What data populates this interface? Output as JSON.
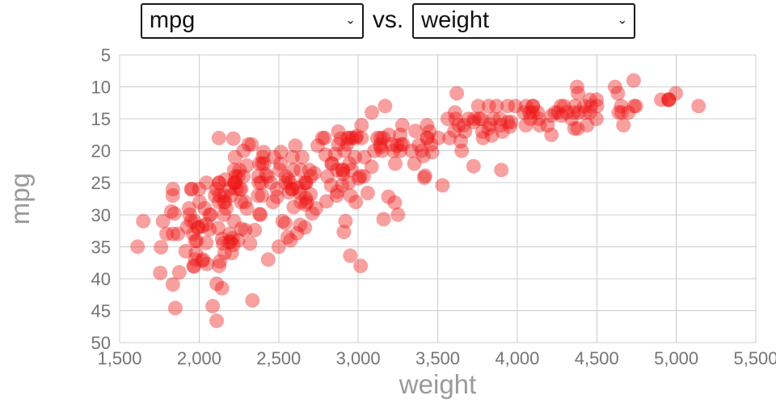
{
  "controls": {
    "y_select": {
      "selected": "mpg"
    },
    "vs_label": "vs.",
    "x_select": {
      "selected": "weight"
    }
  },
  "icons": {
    "select_caret": "⌄"
  },
  "chart_data": {
    "type": "scatter",
    "title": "",
    "xlabel": "weight",
    "ylabel": "mpg",
    "xlim": [
      1500,
      5500
    ],
    "y_top": 5,
    "y_bottom": 50,
    "y_axis_layout": "inverted: 5 at top, 50 at bottom",
    "x_ticks": [
      {
        "value": 1500,
        "label": "1,500"
      },
      {
        "value": 2000,
        "label": "2,000"
      },
      {
        "value": 2500,
        "label": "2,500"
      },
      {
        "value": 3000,
        "label": "3,000"
      },
      {
        "value": 3500,
        "label": "3,500"
      },
      {
        "value": 4000,
        "label": "4,000"
      },
      {
        "value": 4500,
        "label": "4,500"
      },
      {
        "value": 5000,
        "label": "5,000"
      },
      {
        "value": 5500,
        "label": "5,500"
      }
    ],
    "y_ticks": [
      5,
      10,
      15,
      20,
      25,
      30,
      35,
      40,
      45,
      50
    ],
    "grid": true,
    "legend": "none",
    "style": {
      "marker_color": "#ee1111",
      "marker_opacity": 0.4,
      "marker_radius": 9,
      "grid_color": "#cccccc",
      "tick_label_color": "#757575",
      "axis_title_color": "#9a9a9a"
    },
    "points_format": "[weight, mpg]",
    "points": [
      [
        3504,
        18
      ],
      [
        3693,
        15
      ],
      [
        3436,
        18
      ],
      [
        3433,
        16
      ],
      [
        3449,
        17
      ],
      [
        4341,
        15
      ],
      [
        4354,
        14
      ],
      [
        4312,
        14
      ],
      [
        4425,
        14
      ],
      [
        3850,
        15
      ],
      [
        3563,
        15
      ],
      [
        3609,
        14
      ],
      [
        3761,
        15
      ],
      [
        3086,
        14
      ],
      [
        2372,
        24
      ],
      [
        2833,
        22
      ],
      [
        2774,
        18
      ],
      [
        2587,
        21
      ],
      [
        2130,
        27
      ],
      [
        1835,
        26
      ],
      [
        2672,
        25
      ],
      [
        2430,
        24
      ],
      [
        2375,
        25
      ],
      [
        2234,
        26
      ],
      [
        2648,
        21
      ],
      [
        4615,
        10
      ],
      [
        4376,
        10
      ],
      [
        4382,
        11
      ],
      [
        4732,
        9
      ],
      [
        2264,
        28
      ],
      [
        2228,
        25
      ],
      [
        2046,
        25
      ],
      [
        2875,
        19
      ],
      [
        3021,
        16
      ],
      [
        2875,
        17
      ],
      [
        3139,
        19
      ],
      [
        3140,
        18
      ],
      [
        4096,
        14
      ],
      [
        4955,
        12
      ],
      [
        4746,
        13
      ],
      [
        5140,
        13
      ],
      [
        2962,
        18
      ],
      [
        2408,
        22
      ],
      [
        3282,
        19
      ],
      [
        2220,
        23
      ],
      [
        2123,
        28
      ],
      [
        2074,
        30
      ],
      [
        2065,
        30
      ],
      [
        1773,
        31
      ],
      [
        1613,
        35
      ],
      [
        1834,
        27
      ],
      [
        1955,
        26
      ],
      [
        2278,
        24
      ],
      [
        2126,
        25
      ],
      [
        2254,
        23
      ],
      [
        2226,
        21
      ],
      [
        4274,
        13
      ],
      [
        4385,
        14
      ],
      [
        4135,
        15
      ],
      [
        4129,
        14
      ],
      [
        3672,
        17
      ],
      [
        4633,
        11
      ],
      [
        4502,
        13
      ],
      [
        4456,
        12
      ],
      [
        4422,
        13
      ],
      [
        2330,
        19
      ],
      [
        3892,
        15
      ],
      [
        4098,
        13
      ],
      [
        4294,
        13
      ],
      [
        4077,
        14
      ],
      [
        2933,
        18
      ],
      [
        2511,
        22
      ],
      [
        2979,
        21
      ],
      [
        2189,
        26
      ],
      [
        2395,
        22
      ],
      [
        2288,
        28
      ],
      [
        2506,
        23
      ],
      [
        2164,
        28
      ],
      [
        2100,
        27
      ],
      [
        4100,
        13
      ],
      [
        3988,
        13
      ],
      [
        4042,
        14
      ],
      [
        3777,
        15
      ],
      [
        4952,
        12
      ],
      [
        4464,
        13
      ],
      [
        4363,
        13
      ],
      [
        4237,
        14
      ],
      [
        4735,
        13
      ],
      [
        4951,
        12
      ],
      [
        3821,
        13
      ],
      [
        3121,
        18
      ],
      [
        3278,
        16
      ],
      [
        2945,
        18
      ],
      [
        3021,
        18
      ],
      [
        2904,
        23
      ],
      [
        1950,
        26
      ],
      [
        4997,
        11
      ],
      [
        4906,
        12
      ],
      [
        4654,
        13
      ],
      [
        4499,
        12
      ],
      [
        2789,
        18
      ],
      [
        2279,
        20
      ],
      [
        2401,
        21
      ],
      [
        2379,
        22
      ],
      [
        2124,
        18
      ],
      [
        2310,
        19
      ],
      [
        2472,
        21
      ],
      [
        2265,
        26
      ],
      [
        4082,
        15
      ],
      [
        4278,
        14.5
      ],
      [
        1867,
        33
      ],
      [
        2158,
        27
      ],
      [
        2582,
        26
      ],
      [
        2868,
        23
      ],
      [
        3399,
        20
      ],
      [
        2660,
        25
      ],
      [
        2807,
        24
      ],
      [
        3664,
        16
      ],
      [
        3102,
        20
      ],
      [
        2901,
        23
      ],
      [
        3336,
        20
      ],
      [
        1950,
        31
      ],
      [
        2451,
        25
      ],
      [
        1836,
        33
      ],
      [
        2542,
        25
      ],
      [
        3781,
        17
      ],
      [
        3632,
        16
      ],
      [
        3613,
        15
      ],
      [
        4141,
        16
      ],
      [
        4699,
        14
      ],
      [
        4457,
        14
      ],
      [
        4638,
        14
      ],
      [
        4257,
        14
      ],
      [
        2219,
        31
      ],
      [
        1963,
        33
      ],
      [
        2300,
        29
      ],
      [
        1649,
        31
      ],
      [
        2003,
        28
      ],
      [
        2125,
        25
      ],
      [
        2108,
        26
      ],
      [
        2246,
        24
      ],
      [
        2489,
        26
      ],
      [
        2391,
        25
      ],
      [
        2000,
        26
      ],
      [
        3264,
        20
      ],
      [
        3459,
        19
      ],
      [
        3432,
        18
      ],
      [
        3158,
        18
      ],
      [
        4668,
        16
      ],
      [
        4440,
        16
      ],
      [
        4498,
        15
      ],
      [
        4657,
        14
      ],
      [
        3907,
        17
      ],
      [
        3897,
        16
      ],
      [
        3730,
        15
      ],
      [
        3785,
        18
      ],
      [
        3039,
        21
      ],
      [
        3221,
        20
      ],
      [
        3169,
        13
      ],
      [
        2171,
        29
      ],
      [
        2639,
        23
      ],
      [
        2914,
        20
      ],
      [
        2592,
        23
      ],
      [
        2702,
        24
      ],
      [
        2223,
        25
      ],
      [
        2545,
        24
      ],
      [
        2984,
        18
      ],
      [
        1937,
        29
      ],
      [
        3211,
        19
      ],
      [
        2694,
        23
      ],
      [
        2957,
        23
      ],
      [
        2945,
        22
      ],
      [
        2671,
        25
      ],
      [
        1795,
        33
      ],
      [
        2464,
        28
      ],
      [
        2220,
        25
      ],
      [
        2572,
        25
      ],
      [
        2255,
        26
      ],
      [
        2202,
        27
      ],
      [
        4215,
        17.5
      ],
      [
        4190,
        16
      ],
      [
        3962,
        15.5
      ],
      [
        4215,
        14.5
      ],
      [
        3233,
        22
      ],
      [
        3353,
        22
      ],
      [
        3012,
        24
      ],
      [
        3085,
        22.5
      ],
      [
        2035,
        29
      ],
      [
        2164,
        24.5
      ],
      [
        1940,
        30
      ],
      [
        3651,
        20
      ],
      [
        3574,
        18
      ],
      [
        3645,
        18.5
      ],
      [
        3193,
        17.5
      ],
      [
        1825,
        29.5
      ],
      [
        1990,
        32
      ],
      [
        2155,
        28
      ],
      [
        2565,
        26.5
      ],
      [
        3150,
        20
      ],
      [
        3940,
        13
      ],
      [
        3270,
        19
      ],
      [
        2930,
        19
      ],
      [
        3820,
        16.5
      ],
      [
        4380,
        16.5
      ],
      [
        4055,
        13
      ],
      [
        3870,
        13
      ],
      [
        3755,
        13
      ],
      [
        2045,
        31.5
      ],
      [
        2155,
        30
      ],
      [
        2560,
        24.5
      ],
      [
        2300,
        22.3
      ],
      [
        2230,
        24
      ],
      [
        2515,
        20.2
      ],
      [
        2745,
        19.2
      ],
      [
        2855,
        20.5
      ],
      [
        2405,
        20.2
      ],
      [
        2830,
        25.4
      ],
      [
        3140,
        19.4
      ],
      [
        2795,
        20.6
      ],
      [
        3410,
        20.8
      ],
      [
        2215,
        18.1
      ],
      [
        3245,
        19.2
      ],
      [
        2990,
        17.7
      ],
      [
        2890,
        18.1
      ],
      [
        3265,
        17.5
      ],
      [
        3360,
        16.9
      ],
      [
        3840,
        17.6
      ],
      [
        3725,
        15.5
      ],
      [
        3955,
        16.2
      ],
      [
        3830,
        15.9
      ],
      [
        4360,
        16.5
      ],
      [
        4054,
        16
      ],
      [
        3605,
        16.9
      ],
      [
        3940,
        15.5
      ],
      [
        1925,
        31.9
      ],
      [
        1975,
        34.1
      ],
      [
        1915,
        35.7
      ],
      [
        2670,
        27.4
      ],
      [
        3530,
        25.4
      ],
      [
        3900,
        23
      ],
      [
        3190,
        27.2
      ],
      [
        3420,
        23.9
      ],
      [
        2200,
        34.2
      ],
      [
        2150,
        34.5
      ],
      [
        2020,
        31.8
      ],
      [
        2130,
        37.3
      ],
      [
        2670,
        28.4
      ],
      [
        2595,
        28.8
      ],
      [
        2700,
        26.8
      ],
      [
        2556,
        33.5
      ],
      [
        2144,
        41.5
      ],
      [
        1968,
        38.1
      ],
      [
        2120,
        32.1
      ],
      [
        2019,
        37.2
      ],
      [
        2678,
        28
      ],
      [
        2870,
        26.4
      ],
      [
        3003,
        24.3
      ],
      [
        3381,
        19.1
      ],
      [
        2188,
        34.3
      ],
      [
        2711,
        29.8
      ],
      [
        2542,
        31.3
      ],
      [
        2434,
        37
      ],
      [
        2265,
        32.2
      ],
      [
        2110,
        46.6
      ],
      [
        2800,
        27.9
      ],
      [
        2110,
        40.8
      ],
      [
        2085,
        44.3
      ],
      [
        2335,
        43.4
      ],
      [
        2950,
        36.4
      ],
      [
        3250,
        30
      ],
      [
        1850,
        44.6
      ],
      [
        1835,
        40.9
      ],
      [
        2145,
        33.8
      ],
      [
        1845,
        29.8
      ],
      [
        2910,
        32.7
      ],
      [
        2420,
        23.7
      ],
      [
        2500,
        35
      ],
      [
        2905,
        23.6
      ],
      [
        2290,
        32.4
      ],
      [
        2490,
        27.2
      ],
      [
        2635,
        26.6
      ],
      [
        2620,
        25.8
      ],
      [
        2725,
        23.5
      ],
      [
        2385,
        30
      ],
      [
        1755,
        39.1
      ],
      [
        1875,
        39
      ],
      [
        1760,
        35.1
      ],
      [
        2065,
        32.3
      ],
      [
        1975,
        37
      ],
      [
        2050,
        37.7
      ],
      [
        1985,
        34.1
      ],
      [
        2215,
        34.7
      ],
      [
        2045,
        34.4
      ],
      [
        2380,
        29.9
      ],
      [
        2190,
        33
      ],
      [
        2320,
        34.5
      ],
      [
        2210,
        33.7
      ],
      [
        2350,
        32.4
      ],
      [
        2615,
        32.9
      ],
      [
        2635,
        31.6
      ],
      [
        3230,
        28.1
      ],
      [
        3160,
        30.7
      ],
      [
        2900,
        25.4
      ],
      [
        3415,
        24.2
      ],
      [
        3725,
        22.4
      ],
      [
        3060,
        26.6
      ],
      [
        3465,
        20.2
      ],
      [
        2605,
        19.2
      ],
      [
        2640,
        28
      ],
      [
        2395,
        27
      ],
      [
        2575,
        34
      ],
      [
        2525,
        31
      ],
      [
        2735,
        29
      ],
      [
        2865,
        27
      ],
      [
        3035,
        24
      ],
      [
        1980,
        36
      ],
      [
        2025,
        37
      ],
      [
        1970,
        31
      ],
      [
        2125,
        38
      ],
      [
        2160,
        36
      ],
      [
        2205,
        36
      ],
      [
        2245,
        34
      ],
      [
        1965,
        38
      ],
      [
        1995,
        32
      ],
      [
        2940,
        25
      ],
      [
        3015,
        38
      ],
      [
        2585,
        26
      ],
      [
        2835,
        22
      ],
      [
        2665,
        32
      ],
      [
        3620,
        11
      ],
      [
        2370,
        27
      ],
      [
        2951,
        27
      ],
      [
        2920,
        31
      ],
      [
        2985,
        28
      ]
    ]
  }
}
